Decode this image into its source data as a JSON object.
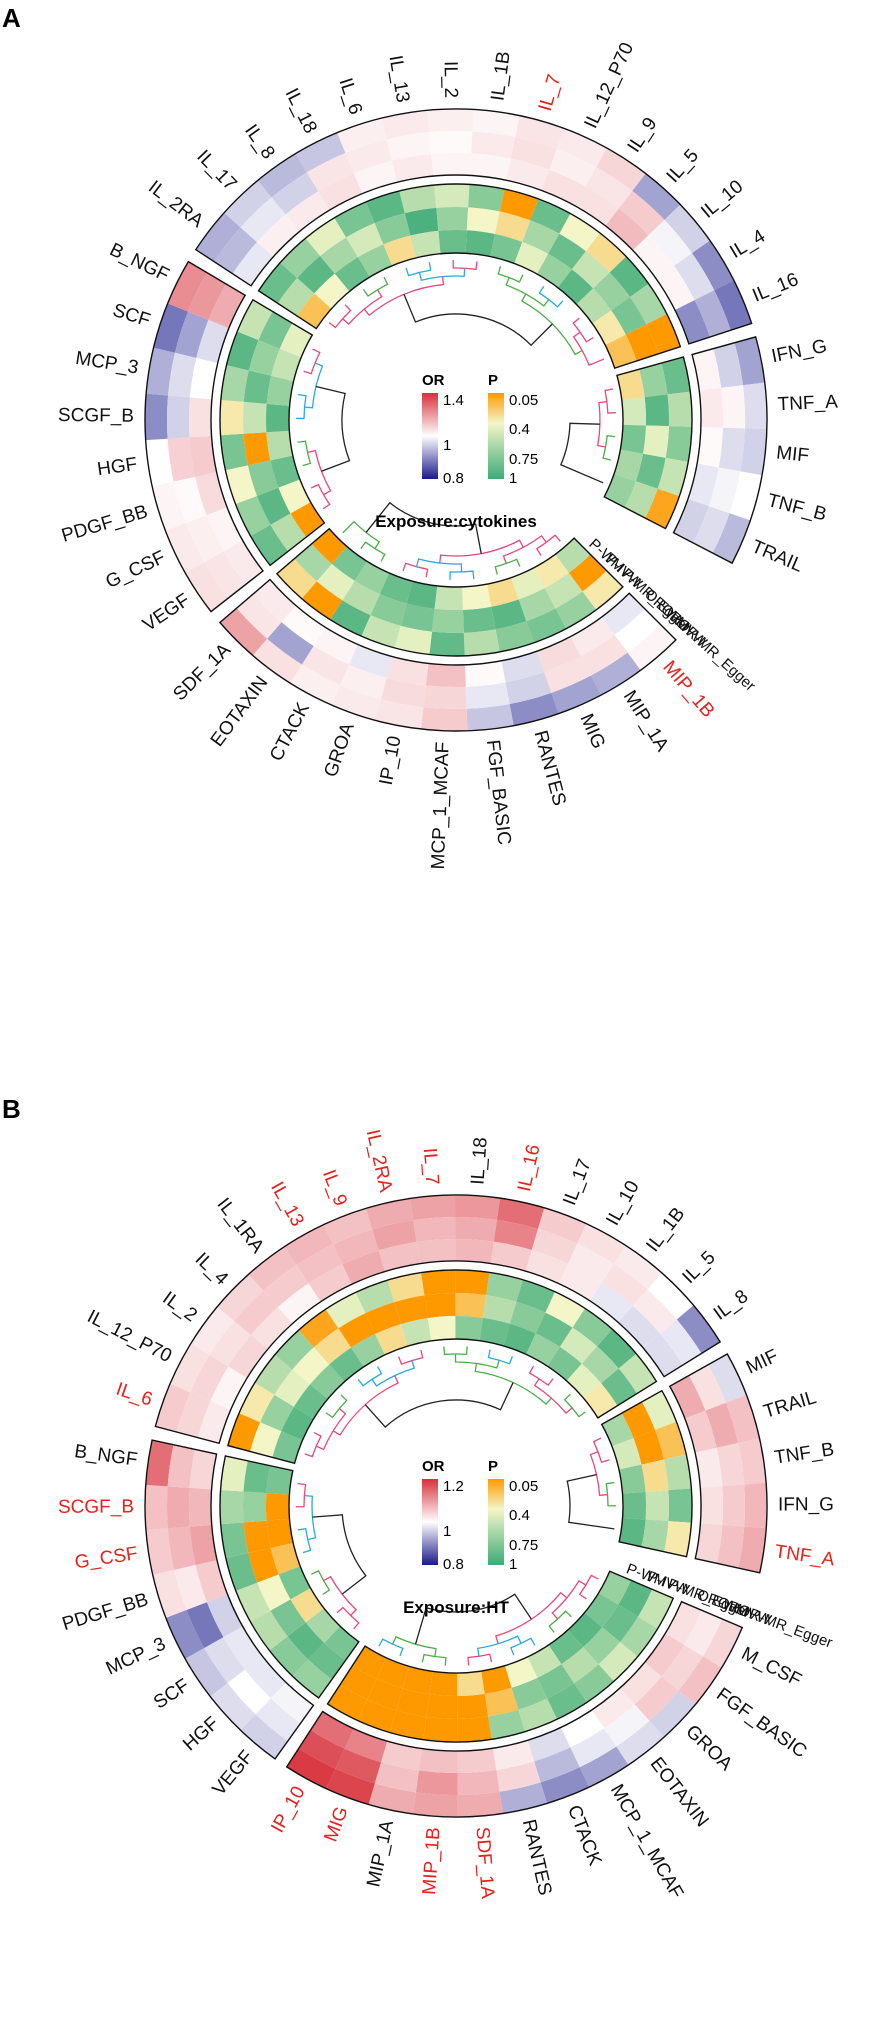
{
  "colors": {
    "or_high": "#d7303a",
    "or_mid": "#ffffff",
    "or_low": "#1a1a8c",
    "p_sig": "#ff9900",
    "p_mid": "#f4f6c8",
    "p_low": "#3cab78",
    "highlight_text": "#e8201c",
    "text": "#111111",
    "dend": [
      "#e8477a",
      "#28a9e0",
      "#4aae46",
      "#222222"
    ]
  },
  "chart_data": [
    {
      "type": "heatmap",
      "panel": "A",
      "exposure_label": "Exposure:cytokines",
      "legend": {
        "or_title": "OR",
        "or_ticks": [
          "1.4",
          "1",
          "0.8"
        ],
        "p_title": "P",
        "p_ticks": [
          "0.05",
          "0.4",
          "0.75",
          "1"
        ]
      },
      "track_labels": [
        "OR-MR_Egger",
        "OR-IVW",
        "OR-WM",
        "P-MR_Egger",
        "P-IVW",
        "P-WM"
      ],
      "sectors": [
        [
          "MIP_1B",
          "MIP_1A",
          "MIG",
          "RANTES",
          "FGF_BASIC",
          "MCP_1_MCAF",
          "IP_10",
          "GROA",
          "CTACK",
          "EOTAXIN",
          "SDF_1A"
        ],
        [
          "VEGF",
          "G_CSF",
          "PDGF_BB",
          "HGF",
          "SCGF_B",
          "MCP_3",
          "SCF",
          "B_NGF"
        ],
        [
          "IL_2RA",
          "IL_17",
          "IL_8",
          "IL_18",
          "IL_6",
          "IL_13",
          "IL_2",
          "IL_1B",
          "IL_7",
          "IL_12_P70",
          "IL_9",
          "IL_5",
          "IL_10",
          "IL_4",
          "IL_16"
        ],
        [
          "IFN_G",
          "TNF_A",
          "MIF",
          "TNF_B",
          "TRAIL"
        ]
      ],
      "highlighted": [
        "MIP_1B",
        "IL_7"
      ],
      "or": {
        "MIP_1B": [
          1.02,
          1.0,
          0.98
        ],
        "MIP_1A": [
          0.93,
          1.06,
          1.04
        ],
        "MIG": [
          0.92,
          1.06,
          1.07
        ],
        "RANTES": [
          0.9,
          0.96,
          0.97
        ],
        "FGF_BASIC": [
          0.95,
          0.98,
          1.01
        ],
        "MCP_1_MCAF": [
          1.1,
          1.08,
          1.12
        ],
        "IP_10": [
          1.05,
          1.07,
          1.06
        ],
        "GROA": [
          1.04,
          1.03,
          0.98
        ],
        "CTACK": [
          1.03,
          1.05,
          1.02
        ],
        "EOTAXIN": [
          1.06,
          0.92,
          1.01
        ],
        "SDF_1A": [
          1.18,
          1.05,
          1.04
        ],
        "VEGF": [
          1.06,
          1.05,
          1.04
        ],
        "G_CSF": [
          1.04,
          1.03,
          1.02
        ],
        "PDGF_BB": [
          1.02,
          1.01,
          1.07
        ],
        "HGF": [
          1.0,
          1.09,
          1.1
        ],
        "SCGF_B": [
          0.9,
          0.96,
          1.06
        ],
        "MCP_3": [
          0.93,
          0.97,
          1.0
        ],
        "SCF": [
          0.88,
          0.92,
          0.97
        ],
        "B_NGF": [
          1.22,
          1.2,
          1.16
        ],
        "IL_2RA": [
          0.93,
          0.94,
          0.98
        ],
        "IL_17": [
          0.96,
          0.98,
          1.03
        ],
        "IL_8": [
          0.94,
          0.96,
          1.04
        ],
        "IL_18": [
          0.95,
          1.05,
          1.06
        ],
        "IL_6": [
          1.03,
          1.04,
          1.02
        ],
        "IL_13": [
          1.04,
          1.02,
          1.04
        ],
        "IL_2": [
          1.03,
          1.01,
          1.02
        ],
        "IL_1B": [
          1.02,
          1.04,
          1.02
        ],
        "IL_7": [
          1.05,
          1.06,
          1.04
        ],
        "IL_12_P70": [
          1.04,
          1.03,
          1.06
        ],
        "IL_9": [
          1.08,
          1.05,
          1.06
        ],
        "IL_5": [
          0.92,
          1.1,
          1.13
        ],
        "IL_10": [
          0.96,
          0.99,
          1.02
        ],
        "IL_4": [
          0.9,
          0.97,
          1.02
        ],
        "IL_16": [
          0.88,
          0.93,
          0.9
        ],
        "IFN_G": [
          0.92,
          0.96,
          1.02
        ],
        "TNF_A": [
          0.97,
          1.02,
          1.04
        ],
        "MIF": [
          0.96,
          0.97,
          1.01
        ],
        "TNF_B": [
          1.0,
          0.99,
          0.98
        ],
        "TRAIL": [
          0.94,
          0.97,
          0.96
        ]
      },
      "p": {
        "MIP_1B": [
          0.35,
          0.05,
          0.6
        ],
        "MIP_1A": [
          0.7,
          0.55,
          0.35
        ],
        "MIG": [
          0.8,
          0.65,
          0.45
        ],
        "RANTES": [
          0.75,
          0.9,
          0.3
        ],
        "FGF_BASIC": [
          0.6,
          0.85,
          0.4
        ],
        "MCP_1_MCAF": [
          0.88,
          0.7,
          0.55
        ],
        "IP_10": [
          0.45,
          0.8,
          0.9
        ],
        "GROA": [
          0.55,
          0.75,
          0.85
        ],
        "CTACK": [
          0.9,
          0.6,
          0.7
        ],
        "EOTAXIN": [
          0.05,
          0.45,
          0.8
        ],
        "SDF_1A": [
          0.3,
          0.65,
          0.05
        ],
        "VEGF": [
          0.85,
          0.6,
          0.05
        ],
        "G_CSF": [
          0.7,
          0.9,
          0.4
        ],
        "PDGF_BB": [
          0.4,
          0.75,
          0.85
        ],
        "HGF": [
          0.8,
          0.05,
          0.6
        ],
        "SCGF_B": [
          0.35,
          0.55,
          0.9
        ],
        "MCP_3": [
          0.65,
          0.85,
          0.7
        ],
        "SCF": [
          0.9,
          0.7,
          0.55
        ],
        "B_NGF": [
          0.55,
          0.8,
          0.45
        ],
        "IL_2RA": [
          0.85,
          0.6,
          0.2
        ],
        "IL_17": [
          0.7,
          0.9,
          0.4
        ],
        "IL_8": [
          0.45,
          0.65,
          0.85
        ],
        "IL_18": [
          0.8,
          0.5,
          0.7
        ],
        "IL_6": [
          0.9,
          0.75,
          0.3
        ],
        "IL_13": [
          0.6,
          0.95,
          0.55
        ],
        "IL_2": [
          0.5,
          0.7,
          0.85
        ],
        "IL_1B": [
          0.75,
          0.4,
          0.9
        ],
        "IL_7": [
          0.05,
          0.3,
          0.8
        ],
        "IL_12_P70": [
          0.85,
          0.65,
          0.45
        ],
        "IL_9": [
          0.4,
          0.85,
          0.7
        ],
        "IL_5": [
          0.3,
          0.55,
          0.9
        ],
        "IL_10": [
          0.9,
          0.7,
          0.6
        ],
        "IL_4": [
          0.65,
          0.8,
          0.35
        ],
        "IL_16": [
          0.05,
          0.05,
          0.2
        ],
        "IFN_G": [
          0.85,
          0.7,
          0.3
        ],
        "TNF_A": [
          0.6,
          0.9,
          0.5
        ],
        "MIF": [
          0.75,
          0.45,
          0.8
        ],
        "TNF_B": [
          0.55,
          0.85,
          0.65
        ],
        "TRAIL": [
          0.1,
          0.6,
          0.7
        ]
      }
    },
    {
      "type": "heatmap",
      "panel": "B",
      "exposure_label": "Exposure:HT",
      "legend": {
        "or_title": "OR",
        "or_ticks": [
          "1.2",
          "1",
          "0.8"
        ],
        "p_title": "P",
        "p_ticks": [
          "0.05",
          "0.4",
          "0.75",
          "1"
        ]
      },
      "track_labels": [
        "OR-MR_Egger",
        "OR-IVW",
        "OR-WM",
        "P-MR_Egger",
        "P-IVW",
        "P-WM"
      ],
      "sectors": [
        [
          "M_CSF",
          "FGF_BASIC",
          "GROA",
          "EOTAXIN",
          "MCP_1_MCAF",
          "CTACK",
          "RANTES",
          "SDF_1A",
          "MIP_1B",
          "MIP_1A",
          "MIG",
          "IP_10"
        ],
        [
          "VEGF",
          "HGF",
          "SCF",
          "MCP_3",
          "PDGF_BB",
          "G_CSF",
          "SCGF_B",
          "B_NGF"
        ],
        [
          "IL_6",
          "IL_12_P70",
          "IL_2",
          "IL_4",
          "IL_1RA",
          "IL_13",
          "IL_9",
          "IL_2RA",
          "IL_7",
          "IL_18",
          "IL_16",
          "IL_17",
          "IL_10",
          "IL_1B",
          "IL_5",
          "IL_8"
        ],
        [
          "MIF",
          "TRAIL",
          "TNF_B",
          "IFN_G",
          "TNF_A"
        ]
      ],
      "highlighted": [
        "SDF_1A",
        "MIP_1B",
        "MIG",
        "IP_10",
        "G_CSF",
        "SCGF_B",
        "IL_6",
        "IL_13",
        "IL_9",
        "IL_2RA",
        "IL_7",
        "IL_16",
        "TNF_A"
      ],
      "or": {
        "M_CSF": [
          1.04,
          1.02,
          1.03
        ],
        "FGF_BASIC": [
          1.06,
          1.04,
          1.05
        ],
        "GROA": [
          0.96,
          1.05,
          1.03
        ],
        "EOTAXIN": [
          0.97,
          0.99,
          1.02
        ],
        "MCP_1_MCAF": [
          0.92,
          0.98,
          1.0
        ],
        "CTACK": [
          0.9,
          0.94,
          0.97
        ],
        "RANTES": [
          0.93,
          1.04,
          1.02
        ],
        "SDF_1A": [
          1.08,
          1.07,
          1.05
        ],
        "MIP_1B": [
          1.09,
          1.1,
          1.06
        ],
        "MIP_1A": [
          1.08,
          1.06,
          1.05
        ],
        "MIG": [
          1.18,
          1.16,
          1.12
        ],
        "IP_10": [
          1.19,
          1.17,
          1.14
        ],
        "VEGF": [
          0.96,
          0.98,
          0.99
        ],
        "HGF": [
          0.97,
          1.0,
          0.98
        ],
        "SCF": [
          0.95,
          0.97,
          0.98
        ],
        "MCP_3": [
          0.9,
          0.88,
          0.96
        ],
        "PDGF_BB": [
          1.03,
          1.02,
          1.05
        ],
        "G_CSF": [
          1.05,
          1.07,
          1.09
        ],
        "SCGF_B": [
          1.06,
          1.08,
          1.07
        ],
        "B_NGF": [
          1.14,
          1.06,
          1.04
        ],
        "IL_6": [
          1.05,
          1.04,
          1.02
        ],
        "IL_12_P70": [
          1.03,
          1.04,
          1.01
        ],
        "IL_2": [
          1.02,
          1.03,
          1.04
        ],
        "IL_4": [
          1.04,
          1.05,
          1.03
        ],
        "IL_1RA": [
          1.06,
          1.05,
          1.01
        ],
        "IL_13": [
          1.07,
          1.06,
          1.05
        ],
        "IL_9": [
          1.06,
          1.07,
          1.08
        ],
        "IL_2RA": [
          1.08,
          1.09,
          1.06
        ],
        "IL_7": [
          1.09,
          1.07,
          1.06
        ],
        "IL_18": [
          1.1,
          1.08,
          1.07
        ],
        "IL_16": [
          1.14,
          1.12,
          1.05
        ],
        "IL_17": [
          1.05,
          1.04,
          1.03
        ],
        "IL_10": [
          1.03,
          1.02,
          1.02
        ],
        "IL_1B": [
          1.02,
          1.03,
          0.98
        ],
        "IL_5": [
          1.0,
          1.02,
          0.97
        ],
        "IL_8": [
          0.9,
          0.98,
          0.97
        ],
        "MIF": [
          0.97,
          1.03,
          1.08
        ],
        "TRAIL": [
          1.06,
          1.08,
          1.05
        ],
        "TNF_B": [
          1.05,
          1.04,
          1.02
        ],
        "IFN_G": [
          1.07,
          1.05,
          1.03
        ],
        "TNF_A": [
          1.08,
          1.06,
          1.04
        ]
      },
      "p": {
        "M_CSF": [
          0.55,
          0.9,
          0.7
        ],
        "FGF_BASIC": [
          0.65,
          0.85,
          0.8
        ],
        "GROA": [
          0.5,
          0.7,
          0.9
        ],
        "EOTAXIN": [
          0.75,
          0.6,
          0.85
        ],
        "MCP_1_MCAF": [
          0.85,
          0.8,
          0.55
        ],
        "CTACK": [
          0.6,
          0.75,
          0.4
        ],
        "RANTES": [
          0.7,
          0.2,
          0.05
        ],
        "SDF_1A": [
          0.05,
          0.05,
          0.3
        ],
        "MIP_1B": [
          0.05,
          0.05,
          0.05
        ],
        "MIP_1A": [
          0.05,
          0.05,
          0.05
        ],
        "MIG": [
          0.05,
          0.05,
          0.05
        ],
        "IP_10": [
          0.05,
          0.05,
          0.05
        ],
        "VEGF": [
          0.7,
          0.85,
          0.8
        ],
        "HGF": [
          0.75,
          0.9,
          0.65
        ],
        "SCF": [
          0.6,
          0.8,
          0.3
        ],
        "MCP_3": [
          0.55,
          0.4,
          0.8
        ],
        "PDGF_BB": [
          0.85,
          0.05,
          0.2
        ],
        "G_CSF": [
          0.8,
          0.05,
          0.05
        ],
        "SCGF_B": [
          0.65,
          0.7,
          0.05
        ],
        "B_NGF": [
          0.45,
          0.85,
          0.8
        ],
        "IL_6": [
          0.05,
          0.4,
          0.8
        ],
        "IL_12_P70": [
          0.35,
          0.7,
          0.9
        ],
        "IL_2": [
          0.6,
          0.45,
          0.85
        ],
        "IL_4": [
          0.7,
          0.4,
          0.75
        ],
        "IL_1RA": [
          0.1,
          0.3,
          0.85
        ],
        "IL_13": [
          0.45,
          0.05,
          0.7
        ],
        "IL_9": [
          0.6,
          0.05,
          0.3
        ],
        "IL_2RA": [
          0.3,
          0.05,
          0.55
        ],
        "IL_7": [
          0.05,
          0.05,
          0.4
        ],
        "IL_18": [
          0.05,
          0.2,
          0.75
        ],
        "IL_16": [
          0.7,
          0.6,
          0.85
        ],
        "IL_17": [
          0.85,
          0.75,
          0.9
        ],
        "IL_10": [
          0.4,
          0.85,
          0.7
        ],
        "IL_1B": [
          0.75,
          0.5,
          0.8
        ],
        "IL_5": [
          0.9,
          0.65,
          0.45
        ],
        "IL_8": [
          0.55,
          0.85,
          0.35
        ],
        "MIF": [
          0.45,
          0.05,
          0.65
        ],
        "TRAIL": [
          0.2,
          0.05,
          0.5
        ],
        "TNF_B": [
          0.6,
          0.3,
          0.75
        ],
        "IFN_G": [
          0.8,
          0.55,
          0.85
        ],
        "TNF_A": [
          0.35,
          0.65,
          0.9
        ]
      }
    }
  ]
}
